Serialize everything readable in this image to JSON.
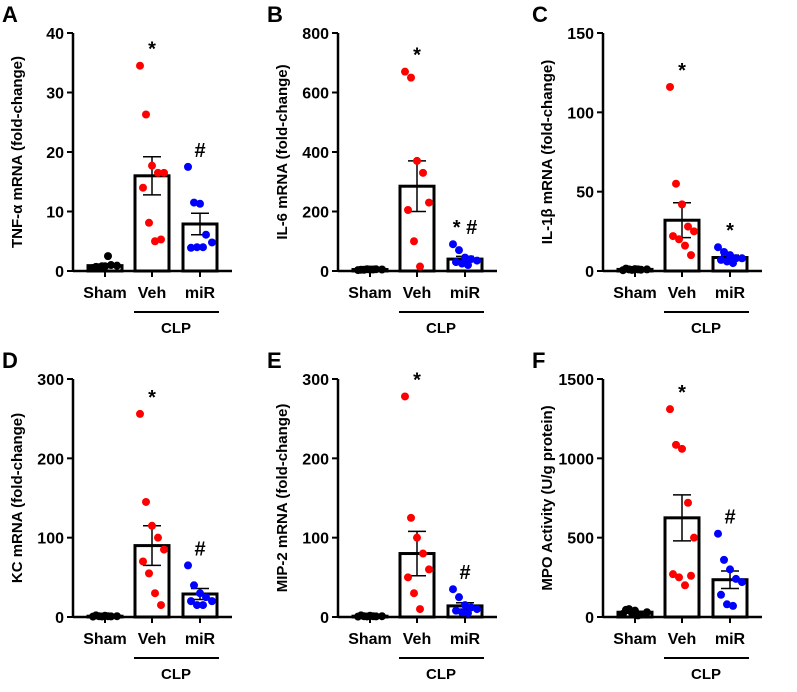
{
  "chart_data": [
    {
      "type": "bar",
      "panel": "A",
      "ylabel": "TNF-α mRNA (fold-change)",
      "ylim": [
        0,
        40
      ],
      "yticks": [
        0,
        10,
        20,
        30,
        40
      ],
      "categories": [
        "Sham",
        "Veh",
        "miR"
      ],
      "group_label": "CLP",
      "means": [
        0.9,
        16,
        7.9
      ],
      "sem": [
        0.25,
        3.2,
        1.8
      ],
      "points": [
        [
          0.5,
          0.6,
          0.8,
          1,
          0.9,
          0.7,
          0.8,
          2.5
        ],
        [
          34.5,
          26.3,
          17.7,
          16.5,
          16.5,
          14,
          8.1,
          5,
          5.3
        ],
        [
          17.5,
          11.5,
          11.3,
          6.1,
          4.8,
          3.9,
          4,
          4
        ]
      ],
      "annotations": [
        "",
        "*",
        "#"
      ]
    },
    {
      "type": "bar",
      "panel": "B",
      "ylabel": "IL-6 mRNA (fold-change)",
      "ylim": [
        0,
        800
      ],
      "yticks": [
        0,
        200,
        400,
        600,
        800
      ],
      "categories": [
        "Sham",
        "Veh",
        "miR"
      ],
      "group_label": "CLP",
      "means": [
        5,
        285,
        40
      ],
      "sem": [
        1,
        85,
        9
      ],
      "points": [
        [
          3,
          4,
          5,
          6,
          5,
          4,
          6,
          5
        ],
        [
          670,
          650,
          370,
          330,
          230,
          205,
          100,
          15
        ],
        [
          90,
          70,
          45,
          40,
          35,
          30,
          25,
          20
        ]
      ],
      "annotations": [
        "",
        "*",
        "* #"
      ]
    },
    {
      "type": "bar",
      "panel": "C",
      "ylabel": "IL-1β mRNA (fold-change)",
      "ylim": [
        0,
        150
      ],
      "yticks": [
        0,
        50,
        100,
        150
      ],
      "categories": [
        "Sham",
        "Veh",
        "miR"
      ],
      "group_label": "CLP",
      "means": [
        1,
        32,
        8.5
      ],
      "sem": [
        0.3,
        11,
        1.5
      ],
      "points": [
        [
          0.5,
          1,
          1.2,
          0.8,
          1,
          1.5,
          0.7,
          1
        ],
        [
          116,
          55,
          42,
          28,
          25,
          22,
          20,
          16,
          10
        ],
        [
          15,
          12,
          10,
          8,
          8,
          7,
          6,
          5
        ]
      ],
      "annotations": [
        "",
        "*",
        "*"
      ]
    },
    {
      "type": "bar",
      "panel": "D",
      "ylabel": "KC mRNA (fold-change)",
      "ylim": [
        0,
        300
      ],
      "yticks": [
        0,
        100,
        200,
        300
      ],
      "categories": [
        "Sham",
        "Veh",
        "miR"
      ],
      "group_label": "CLP",
      "means": [
        1,
        90,
        29
      ],
      "sem": [
        0.3,
        25,
        7
      ],
      "points": [
        [
          0.5,
          1,
          1.5,
          0.8,
          1,
          2,
          0.7,
          1
        ],
        [
          256,
          145,
          115,
          100,
          85,
          70,
          55,
          30,
          15
        ],
        [
          65,
          40,
          30,
          25,
          20,
          20,
          15,
          15
        ]
      ],
      "annotations": [
        "",
        "*",
        "#"
      ]
    },
    {
      "type": "bar",
      "panel": "E",
      "ylabel": "MIP-2 mRNA (fold-change)",
      "ylim": [
        0,
        300
      ],
      "yticks": [
        0,
        100,
        200,
        300
      ],
      "categories": [
        "Sham",
        "Veh",
        "miR"
      ],
      "group_label": "CLP",
      "means": [
        1,
        80,
        14
      ],
      "sem": [
        0.3,
        28,
        4
      ],
      "points": [
        [
          0.5,
          1,
          1.5,
          0.8,
          1,
          2,
          0.7,
          1
        ],
        [
          278,
          125,
          100,
          80,
          60,
          50,
          30,
          10
        ],
        [
          35,
          25,
          15,
          12,
          10,
          8,
          6,
          5
        ]
      ],
      "annotations": [
        "",
        "*",
        "#"
      ]
    },
    {
      "type": "bar",
      "panel": "F",
      "ylabel": "MPO Activity (U/g protein)",
      "ylim": [
        0,
        1500
      ],
      "yticks": [
        0,
        500,
        1000,
        1500
      ],
      "categories": [
        "Sham",
        "Veh",
        "miR"
      ],
      "group_label": "CLP",
      "means": [
        30,
        625,
        235
      ],
      "sem": [
        6,
        145,
        55
      ],
      "points": [
        [
          20,
          50,
          40,
          15,
          30,
          45,
          25,
          10
        ],
        [
          1310,
          1085,
          1060,
          720,
          500,
          270,
          250,
          200,
          260
        ],
        [
          525,
          360,
          300,
          240,
          220,
          140,
          80,
          70
        ]
      ],
      "annotations": [
        "",
        "*",
        "#"
      ]
    }
  ],
  "colors": {
    "sham": "#000000",
    "veh": "#ff0000",
    "mir": "#0000ff"
  }
}
